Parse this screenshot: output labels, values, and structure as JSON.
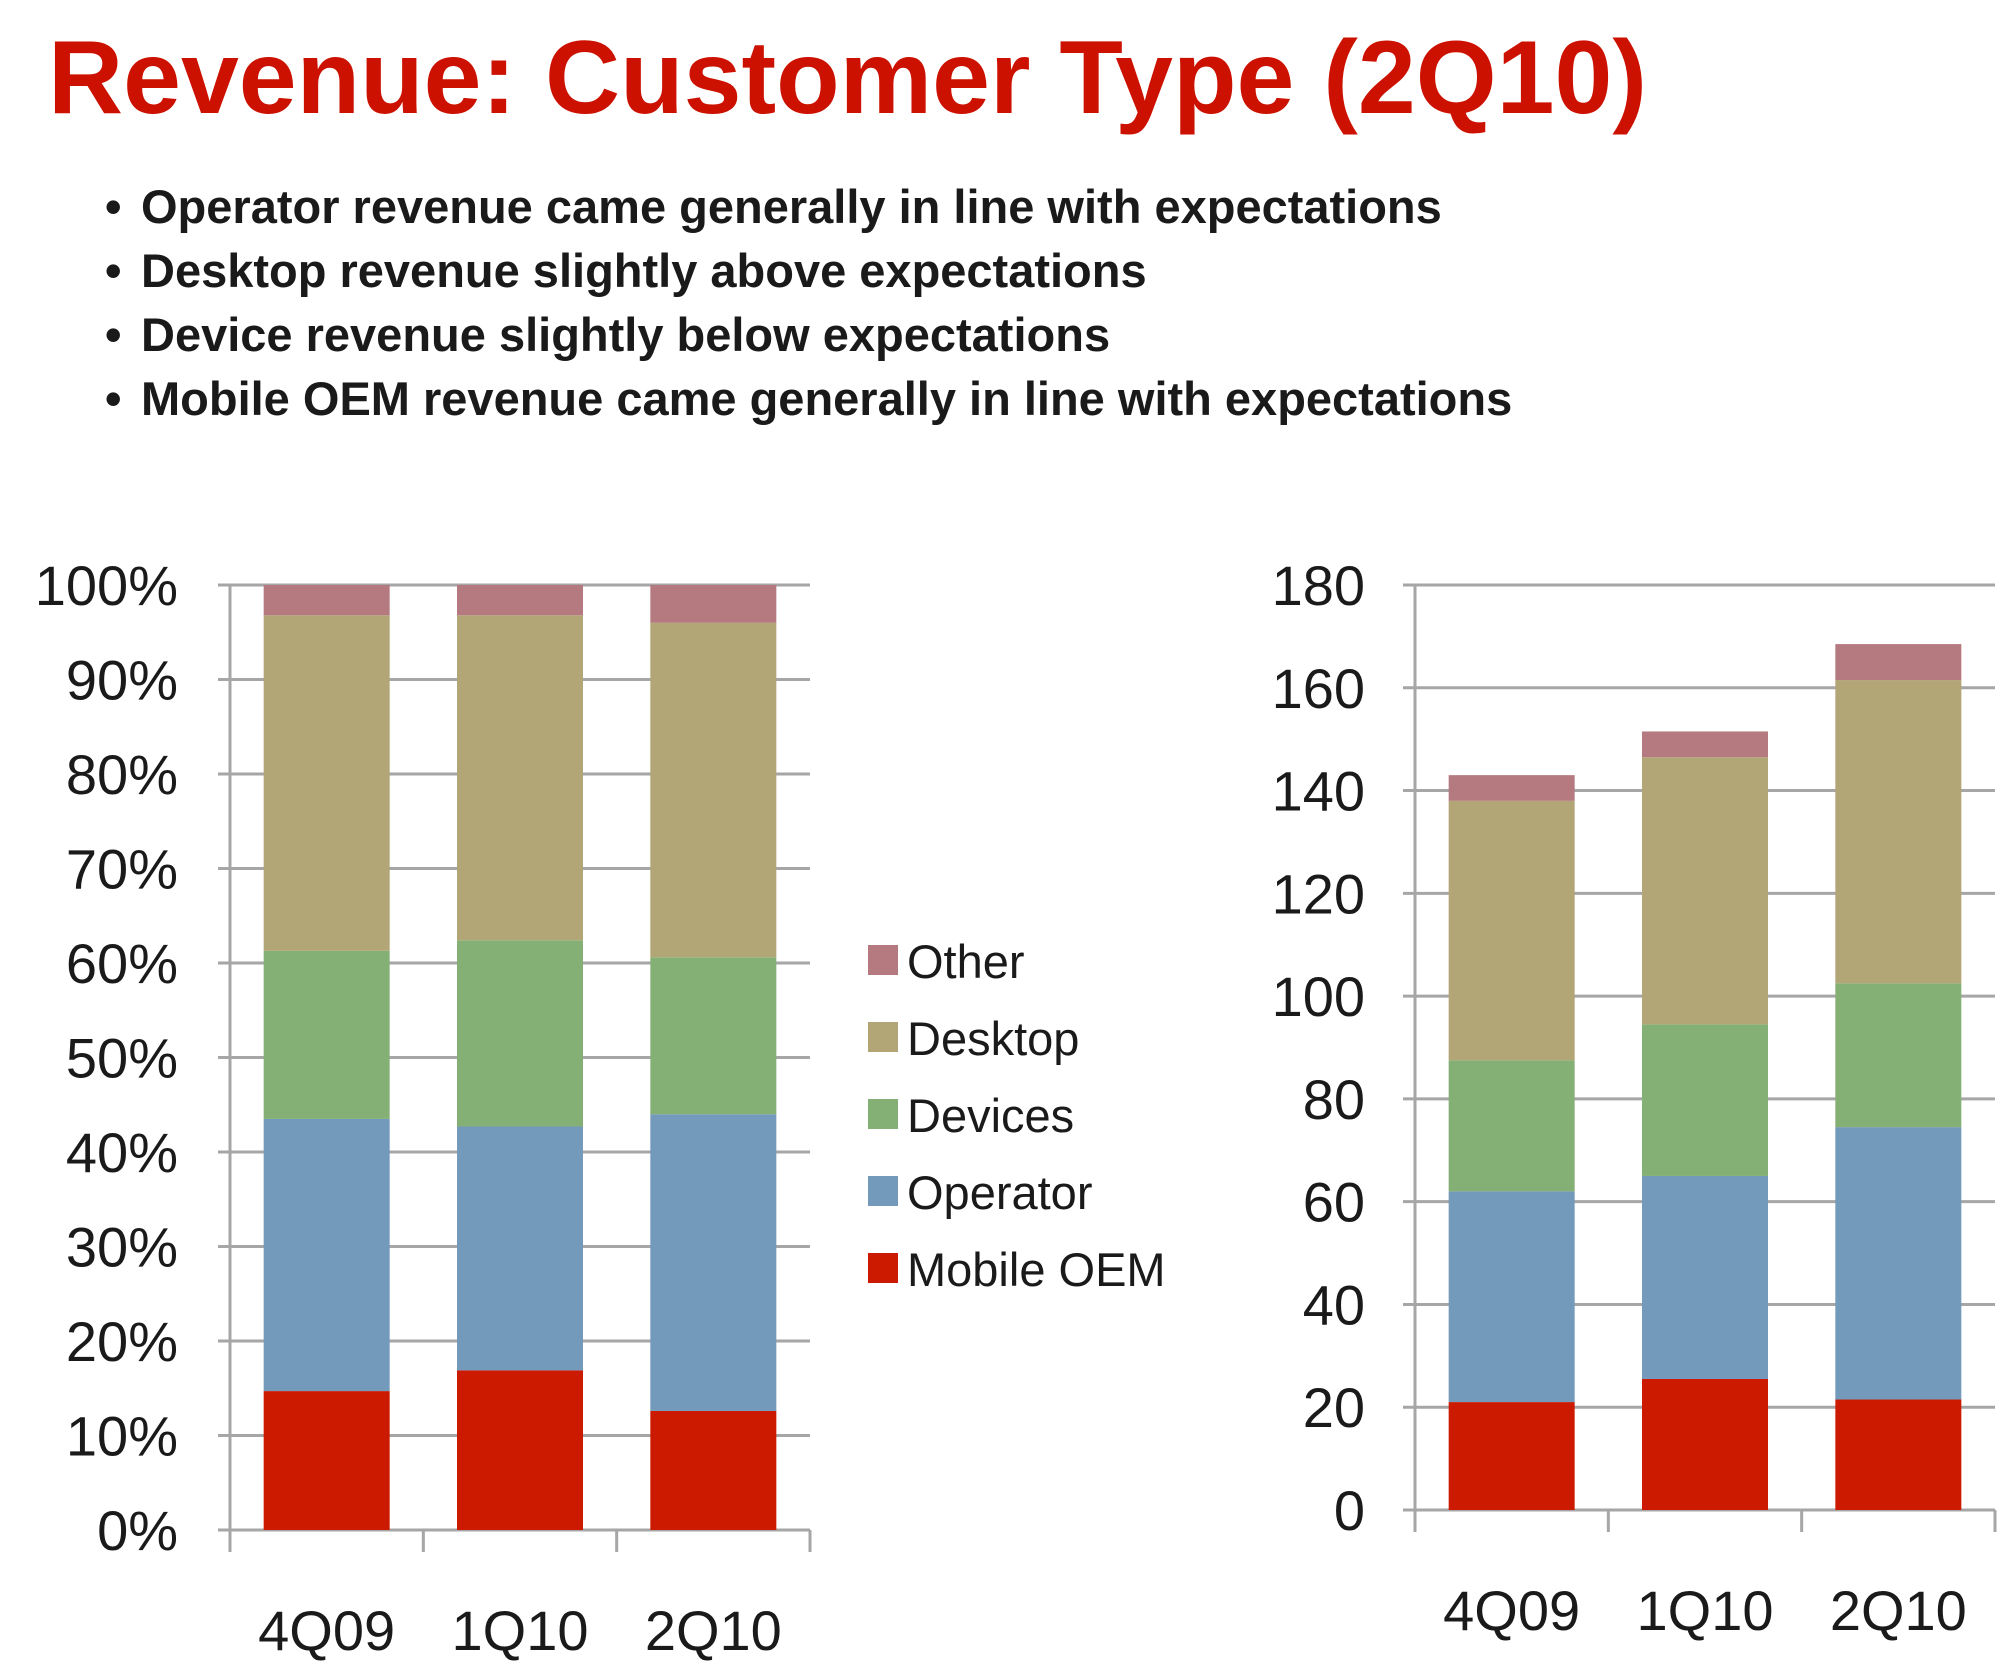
{
  "title": "Revenue: Customer Type (2Q10)",
  "bullets": [
    "Operator revenue came generally in line with expectations",
    "Desktop revenue slightly above expectations",
    "Device revenue slightly below expectations",
    "Mobile OEM revenue came generally in line with expectations"
  ],
  "colors": {
    "Mobile OEM": "#cc1a00",
    "Operator": "#7399bb",
    "Devices": "#84b076",
    "Desktop": "#b2a576",
    "Other": "#b47a7f",
    "grid": "#a6a6a6"
  },
  "legend": [
    "Other",
    "Desktop",
    "Devices",
    "Operator",
    "Mobile OEM"
  ],
  "chart_data": [
    {
      "type": "bar",
      "stacked": true,
      "categories": [
        "4Q09",
        "1Q10",
        "2Q10"
      ],
      "series": [
        {
          "name": "Mobile OEM",
          "values": [
            14.7,
            16.9,
            12.6
          ]
        },
        {
          "name": "Operator",
          "values": [
            28.8,
            25.8,
            31.4
          ]
        },
        {
          "name": "Devices",
          "values": [
            17.8,
            19.7,
            16.6
          ]
        },
        {
          "name": "Desktop",
          "values": [
            35.5,
            34.4,
            35.4
          ]
        },
        {
          "name": "Other",
          "values": [
            3.2,
            3.2,
            4.0
          ]
        }
      ],
      "ylim": [
        0,
        100
      ],
      "ytick_step": 10,
      "ytick_suffix": "%",
      "grid": true
    },
    {
      "type": "bar",
      "stacked": true,
      "categories": [
        "4Q09",
        "1Q10",
        "2Q10"
      ],
      "series": [
        {
          "name": "Mobile OEM",
          "values": [
            21,
            25.5,
            21.5
          ]
        },
        {
          "name": "Operator",
          "values": [
            41,
            39.5,
            53
          ]
        },
        {
          "name": "Devices",
          "values": [
            25.5,
            29.5,
            28
          ]
        },
        {
          "name": "Desktop",
          "values": [
            50.5,
            52,
            59
          ]
        },
        {
          "name": "Other",
          "values": [
            5,
            5,
            7
          ]
        }
      ],
      "ylim": [
        0,
        180
      ],
      "ytick_step": 20,
      "ytick_suffix": "",
      "grid": true
    }
  ]
}
